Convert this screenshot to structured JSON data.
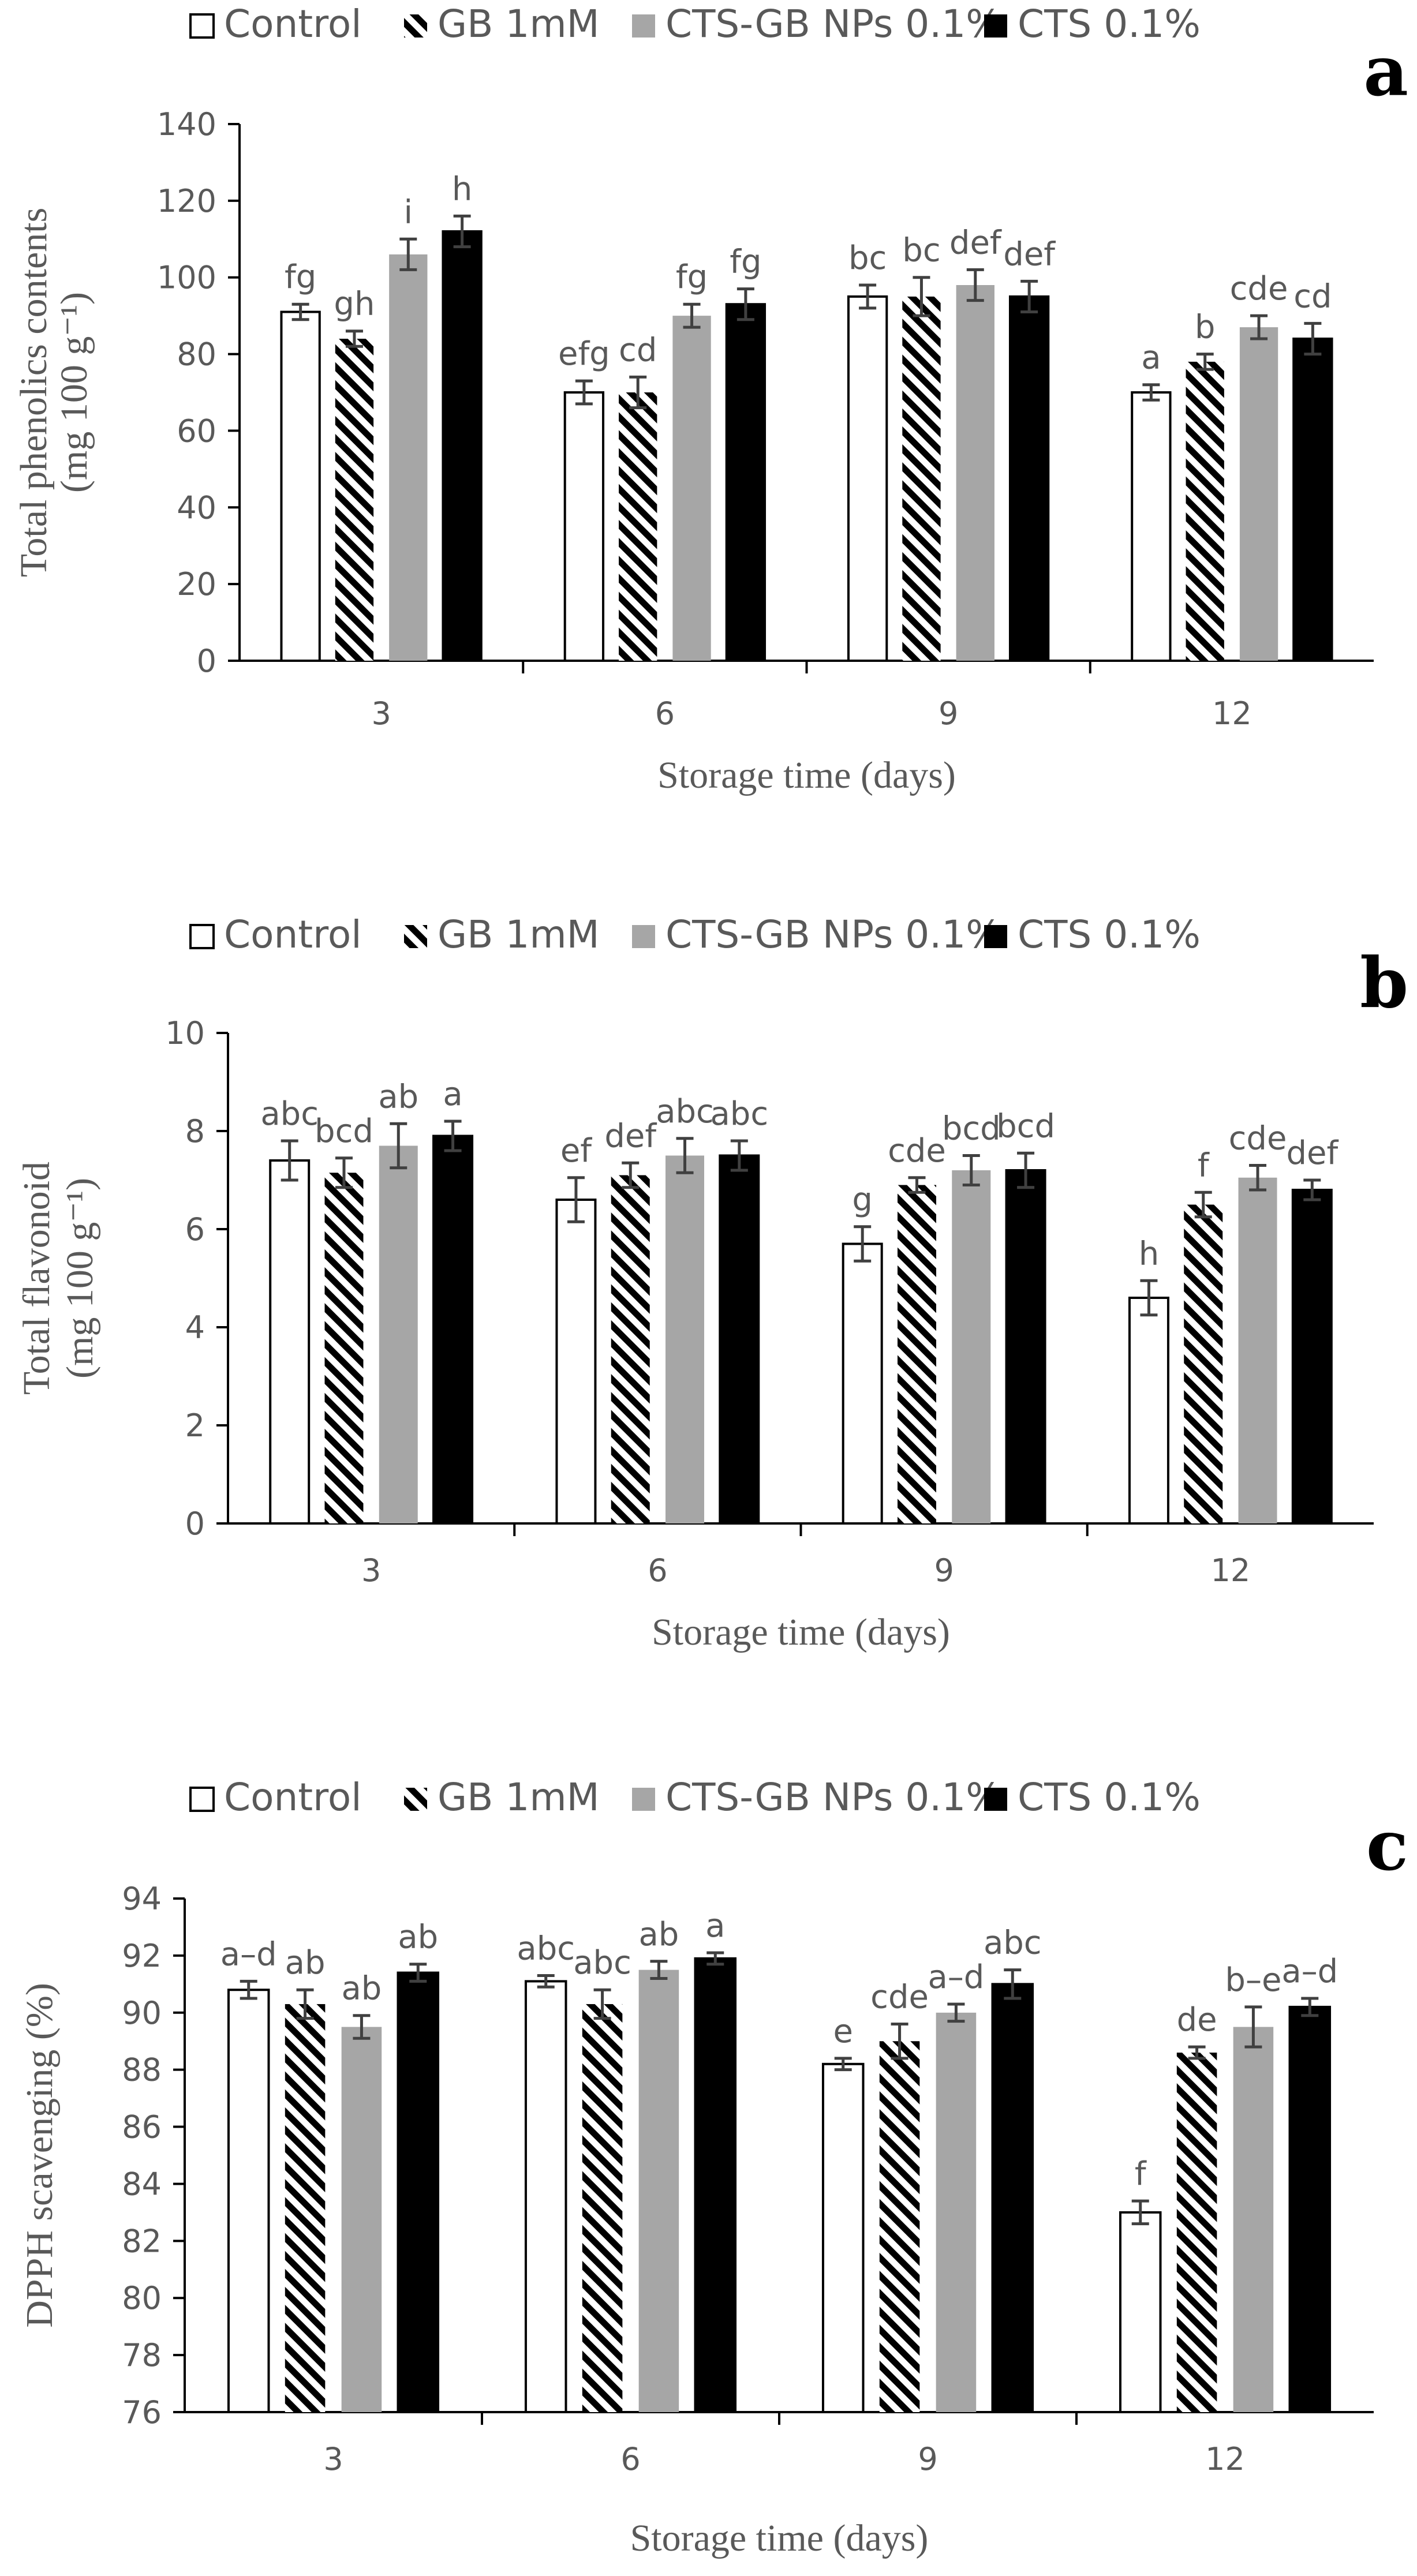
{
  "colors": {
    "control_fill": "#ffffff",
    "gb_hatch": "#000000",
    "nps_fill": "#a6a6a6",
    "cts_fill": "#000000",
    "axis": "#000000",
    "text": "#595959",
    "error_bar": "#404040"
  },
  "legend": [
    "Control",
    "GB 1mM",
    "CTS-GB NPs 0.1%",
    "CTS 0.1%"
  ],
  "chart_data": [
    {
      "type": "bar",
      "panel": "a",
      "categories": [
        "3",
        "6",
        "9",
        "12"
      ],
      "series": [
        {
          "name": "Control",
          "values": [
            91,
            70,
            95,
            70
          ],
          "errors": [
            2,
            3,
            3,
            2
          ],
          "labels": [
            "fg",
            "efg",
            "bc",
            "a"
          ]
        },
        {
          "name": "GB 1mM",
          "values": [
            84,
            70,
            95,
            78
          ],
          "errors": [
            2,
            4,
            5,
            2
          ],
          "labels": [
            "gh",
            "cd",
            "bc",
            "b"
          ]
        },
        {
          "name": "CTS-GB NPs 0.1%",
          "values": [
            106,
            90,
            98,
            87
          ],
          "errors": [
            4,
            3,
            4,
            3
          ],
          "labels": [
            "i",
            "fg",
            "def",
            "cde"
          ]
        },
        {
          "name": "CTS 0.1%",
          "values": [
            112,
            93,
            95,
            84
          ],
          "errors": [
            4,
            4,
            4,
            4
          ],
          "labels": [
            "h",
            "fg",
            "def",
            "cd"
          ]
        }
      ],
      "ylabel_line1": "Total phenolics contents",
      "ylabel_line2": "(mg 100 g⁻¹)",
      "xlabel": "Storage time (days)",
      "ylim": [
        0,
        140
      ],
      "yticks": [
        "0",
        "20",
        "40",
        "60",
        "80",
        "100",
        "120",
        "140"
      ]
    },
    {
      "type": "bar",
      "panel": "b",
      "categories": [
        "3",
        "6",
        "9",
        "12"
      ],
      "series": [
        {
          "name": "Control",
          "values": [
            7.4,
            6.6,
            5.7,
            4.6
          ],
          "errors": [
            0.4,
            0.45,
            0.35,
            0.35
          ],
          "labels": [
            "abc",
            "ef",
            "g",
            "h"
          ]
        },
        {
          "name": "GB 1mM",
          "values": [
            7.15,
            7.1,
            6.9,
            6.5
          ],
          "errors": [
            0.3,
            0.25,
            0.15,
            0.25
          ],
          "labels": [
            "bcd",
            "def",
            "cde",
            "f"
          ]
        },
        {
          "name": "CTS-GB NPs 0.1%",
          "values": [
            7.7,
            7.5,
            7.2,
            7.05
          ],
          "errors": [
            0.45,
            0.35,
            0.3,
            0.25
          ],
          "labels": [
            "ab",
            "abc",
            "bcd",
            "cde"
          ]
        },
        {
          "name": "CTS 0.1%",
          "values": [
            7.9,
            7.5,
            7.2,
            6.8
          ],
          "errors": [
            0.3,
            0.3,
            0.35,
            0.2
          ],
          "labels": [
            "a",
            "abc",
            "bcd",
            "def"
          ]
        }
      ],
      "ylabel_line1": "Total flavonoid",
      "ylabel_line2": "(mg 100 g⁻¹)",
      "xlabel": "Storage time (days)",
      "ylim": [
        0,
        10
      ],
      "yticks": [
        "0",
        "2",
        "4",
        "6",
        "8",
        "10"
      ]
    },
    {
      "type": "bar",
      "panel": "c",
      "categories": [
        "3",
        "6",
        "9",
        "12"
      ],
      "series": [
        {
          "name": "Control",
          "values": [
            90.8,
            91.1,
            88.2,
            83.0
          ],
          "errors": [
            0.3,
            0.2,
            0.2,
            0.4
          ],
          "labels": [
            "a–d",
            "abc",
            "e",
            "f"
          ]
        },
        {
          "name": "GB 1mM",
          "values": [
            90.3,
            90.3,
            89.0,
            88.6
          ],
          "errors": [
            0.5,
            0.5,
            0.6,
            0.2
          ],
          "labels": [
            "ab",
            "abc",
            "cde",
            "de"
          ]
        },
        {
          "name": "CTS-GB NPs 0.1%",
          "values": [
            89.5,
            91.5,
            90.0,
            89.5
          ],
          "errors": [
            0.4,
            0.3,
            0.3,
            0.7
          ],
          "labels": [
            "ab",
            "ab",
            "a–d",
            "b–e"
          ]
        },
        {
          "name": "CTS 0.1%",
          "values": [
            91.4,
            91.9,
            91.0,
            90.2
          ],
          "errors": [
            0.3,
            0.2,
            0.5,
            0.3
          ],
          "labels": [
            "ab",
            "a",
            "abc",
            "a–d"
          ]
        }
      ],
      "ylabel_line1": "DPPH scavenging  (%)",
      "ylabel_line2": "",
      "xlabel": "Storage time (days)",
      "ylim": [
        76,
        94
      ],
      "yticks": [
        "76",
        "78",
        "80",
        "82",
        "84",
        "86",
        "88",
        "90",
        "92",
        "94"
      ]
    }
  ]
}
